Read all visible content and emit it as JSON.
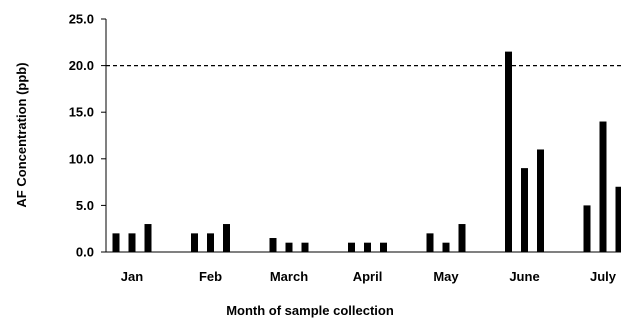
{
  "chart_data": {
    "type": "bar",
    "title": "",
    "xlabel": "Month of sample collection",
    "ylabel": "AF Concentration (ppb)",
    "ylim": [
      0,
      25
    ],
    "yticks": [
      "0.0",
      "5.0",
      "10.0",
      "15.0",
      "20.0",
      "25.0"
    ],
    "categories": [
      "Jan",
      "Feb",
      "March",
      "April",
      "May",
      "June",
      "July"
    ],
    "series": [
      {
        "values": [
          2,
          2,
          1.5,
          1,
          2,
          21.5,
          5
        ]
      },
      {
        "values": [
          2,
          2,
          1,
          1,
          1,
          9,
          14
        ]
      },
      {
        "values": [
          3,
          3,
          1,
          1,
          3,
          11,
          7
        ]
      }
    ],
    "reference_line": {
      "y": 20,
      "style": "dashed"
    },
    "grid": false,
    "legend": "none",
    "colors": {
      "bars": "#000000",
      "axis": "#000000",
      "background": "#ffffff"
    }
  }
}
